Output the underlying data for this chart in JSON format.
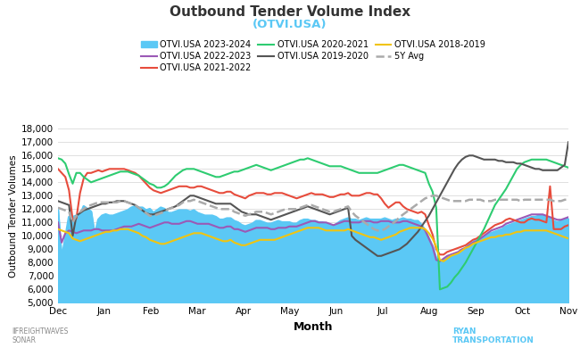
{
  "title": "Outbound Tender Volume Index",
  "subtitle": "(OTVI.USA)",
  "xlabel": "Month",
  "ylabel": "Outbound Tender Volumes",
  "ylim": [
    5000,
    18000
  ],
  "yticks": [
    5000,
    6000,
    7000,
    8000,
    9000,
    10000,
    11000,
    12000,
    13000,
    14000,
    15000,
    16000,
    17000,
    18000
  ],
  "months": [
    "Dec",
    "Jan",
    "Feb",
    "Mar",
    "Apr",
    "May",
    "Jun",
    "Jul",
    "Aug",
    "Sep",
    "Oct",
    "Nov"
  ],
  "bg_color": "#ffffff",
  "grid_color": "#e0e0e0",
  "series": {
    "2023-2024": {
      "label": "OTVI.USA 2023-2024",
      "color": "#5bc8f5",
      "fill": true,
      "lw": 2.0,
      "values": [
        11900,
        8200,
        9800,
        11400,
        11400,
        11500,
        11500,
        12200,
        12000,
        11800,
        10000,
        11200,
        11500,
        11600,
        11500,
        11500,
        11600,
        11700,
        11800,
        11900,
        12100,
        12200,
        12100,
        12100,
        11900,
        12000,
        11700,
        11900,
        12100,
        12000,
        11700,
        11700,
        11800,
        11900,
        11900,
        11900,
        11800,
        11900,
        11700,
        11600,
        11500,
        11500,
        11500,
        11400,
        11200,
        11200,
        11300,
        11300,
        11100,
        11000,
        10800,
        10700,
        10800,
        10900,
        11100,
        11100,
        11000,
        10900,
        10900,
        11000,
        11100,
        11000,
        11000,
        11000,
        10900,
        10900,
        11100,
        11200,
        11200,
        11100,
        11100,
        11000,
        11000,
        10900,
        10800,
        10700,
        10900,
        11100,
        11200,
        11300,
        11200,
        11200,
        11100,
        11200,
        11300,
        11200,
        11200,
        11200,
        11200,
        11300,
        11200,
        11100,
        11200,
        11200,
        11300,
        11200,
        11200,
        11100,
        11100,
        10800,
        10400,
        9800,
        9200,
        8300,
        8100,
        8200,
        8400,
        8500,
        8600,
        8700,
        8900,
        9100,
        9300,
        9500,
        9700,
        9800,
        9900,
        10100,
        10200,
        10300,
        10400,
        10500,
        10700,
        10800,
        10900,
        11000,
        11100,
        11200,
        11300,
        11400,
        11400,
        11500,
        11500,
        11400,
        11300,
        11100,
        11000,
        11100,
        11200,
        11300
      ]
    },
    "2022-2023": {
      "label": "OTVI.USA 2022-2023",
      "color": "#9b59b6",
      "fill": false,
      "lw": 1.5,
      "values": [
        11000,
        9500,
        10200,
        10400,
        10300,
        10200,
        10300,
        10400,
        10400,
        10400,
        10500,
        10500,
        10400,
        10400,
        10400,
        10400,
        10500,
        10600,
        10700,
        10700,
        10700,
        10800,
        10900,
        10800,
        10700,
        10600,
        10700,
        10800,
        10900,
        11000,
        11000,
        10900,
        10900,
        10900,
        11000,
        11100,
        11100,
        11000,
        10900,
        10900,
        10900,
        10900,
        10800,
        10700,
        10600,
        10600,
        10700,
        10700,
        10500,
        10500,
        10400,
        10300,
        10400,
        10500,
        10600,
        10600,
        10600,
        10600,
        10500,
        10500,
        10600,
        10600,
        10600,
        10700,
        10700,
        10700,
        10800,
        10900,
        11000,
        11100,
        11100,
        11000,
        11000,
        11000,
        10900,
        10800,
        10900,
        11000,
        11100,
        11100,
        11000,
        11000,
        11000,
        11100,
        11100,
        11100,
        11000,
        11000,
        11100,
        11100,
        11100,
        11000,
        11000,
        11000,
        11100,
        11100,
        11000,
        10900,
        10800,
        10700,
        10400,
        9800,
        9200,
        8200,
        8100,
        8300,
        8500,
        8600,
        8700,
        8800,
        9000,
        9100,
        9300,
        9500,
        9600,
        9800,
        10000,
        10200,
        10400,
        10500,
        10600,
        10700,
        10900,
        11000,
        11100,
        11200,
        11300,
        11400,
        11500,
        11600,
        11600,
        11600,
        11600,
        11500,
        11400,
        11300,
        11200,
        11200,
        11300,
        11400
      ]
    },
    "2021-2022": {
      "label": "OTVI.USA 2021-2022",
      "color": "#e74c3c",
      "fill": false,
      "lw": 1.5,
      "values": [
        15000,
        14700,
        14400,
        13400,
        11200,
        11300,
        13200,
        14300,
        14700,
        14700,
        14800,
        14900,
        14800,
        14900,
        15000,
        15000,
        15000,
        15000,
        15000,
        14900,
        14800,
        14700,
        14500,
        14200,
        13900,
        13600,
        13400,
        13300,
        13200,
        13300,
        13400,
        13500,
        13600,
        13700,
        13700,
        13700,
        13600,
        13600,
        13700,
        13700,
        13600,
        13500,
        13400,
        13300,
        13200,
        13200,
        13300,
        13300,
        13100,
        13000,
        12900,
        12800,
        13000,
        13100,
        13200,
        13200,
        13200,
        13100,
        13100,
        13200,
        13200,
        13200,
        13100,
        13000,
        12900,
        12800,
        12900,
        13000,
        13100,
        13200,
        13100,
        13100,
        13100,
        13000,
        12900,
        12900,
        13000,
        13100,
        13100,
        13200,
        13000,
        13000,
        13000,
        13100,
        13200,
        13200,
        13100,
        13100,
        12800,
        12400,
        12100,
        12300,
        12500,
        12500,
        12200,
        12000,
        11900,
        11800,
        11700,
        11800,
        11600,
        10800,
        10100,
        9000,
        8600,
        8600,
        8800,
        8900,
        9000,
        9100,
        9200,
        9300,
        9500,
        9700,
        9800,
        10000,
        10200,
        10400,
        10600,
        10800,
        10900,
        11000,
        11200,
        11300,
        11200,
        11100,
        11000,
        11000,
        11200,
        11300,
        11200,
        11200,
        11100,
        11000,
        13700,
        10500,
        10500,
        10500,
        10700,
        10800
      ]
    },
    "2020-2021": {
      "label": "OTVI.USA 2020-2021",
      "color": "#2ecc71",
      "fill": false,
      "lw": 1.5,
      "values": [
        15800,
        15700,
        15400,
        14600,
        13900,
        14700,
        14700,
        14400,
        14200,
        14000,
        14100,
        14200,
        14300,
        14400,
        14500,
        14600,
        14700,
        14800,
        14800,
        14800,
        14700,
        14600,
        14500,
        14300,
        14100,
        13900,
        13800,
        13600,
        13600,
        13700,
        13900,
        14200,
        14500,
        14700,
        14900,
        15000,
        15000,
        15000,
        14900,
        14800,
        14700,
        14600,
        14500,
        14400,
        14400,
        14500,
        14600,
        14700,
        14800,
        14800,
        14900,
        15000,
        15100,
        15200,
        15300,
        15200,
        15100,
        15000,
        14900,
        15000,
        15100,
        15200,
        15300,
        15400,
        15500,
        15600,
        15700,
        15700,
        15800,
        15700,
        15600,
        15500,
        15400,
        15300,
        15200,
        15200,
        15200,
        15200,
        15100,
        15000,
        14900,
        14800,
        14700,
        14700,
        14700,
        14700,
        14700,
        14700,
        14800,
        14900,
        15000,
        15100,
        15200,
        15300,
        15300,
        15200,
        15100,
        15000,
        14900,
        14800,
        14700,
        13900,
        13300,
        12100,
        6000,
        6100,
        6200,
        6500,
        6900,
        7200,
        7600,
        8000,
        8500,
        9000,
        9500,
        10000,
        10500,
        11100,
        11700,
        12300,
        12700,
        13100,
        13500,
        14000,
        14500,
        15000,
        15300,
        15500,
        15600,
        15700,
        15700,
        15700,
        15700,
        15700,
        15600,
        15500,
        15400,
        15300,
        15200,
        15100
      ]
    },
    "2019-2020": {
      "label": "OTVI.USA 2019-2020",
      "color": "#555555",
      "fill": false,
      "lw": 1.5,
      "values": [
        12600,
        12500,
        12400,
        12300,
        10000,
        11500,
        11700,
        11900,
        12000,
        12100,
        12200,
        12300,
        12400,
        12400,
        12500,
        12500,
        12600,
        12600,
        12600,
        12500,
        12400,
        12300,
        12100,
        11900,
        11700,
        11600,
        11600,
        11700,
        11800,
        11900,
        12000,
        12100,
        12200,
        12400,
        12600,
        12800,
        13000,
        13000,
        12900,
        12800,
        12700,
        12600,
        12500,
        12400,
        12400,
        12400,
        12400,
        12400,
        12200,
        12000,
        11800,
        11700,
        11600,
        11600,
        11600,
        11500,
        11400,
        11300,
        11200,
        11300,
        11400,
        11500,
        11600,
        11700,
        11800,
        11900,
        12000,
        12100,
        12200,
        12100,
        12000,
        11900,
        11800,
        11700,
        11600,
        11700,
        11800,
        11900,
        12000,
        12100,
        10000,
        9700,
        9500,
        9300,
        9100,
        8900,
        8700,
        8500,
        8500,
        8600,
        8700,
        8800,
        8900,
        9000,
        9200,
        9400,
        9700,
        10000,
        10300,
        10700,
        11100,
        11500,
        12000,
        12500,
        13000,
        13500,
        14000,
        14500,
        15000,
        15400,
        15700,
        15900,
        16000,
        16000,
        15900,
        15800,
        15700,
        15700,
        15700,
        15700,
        15600,
        15600,
        15500,
        15500,
        15500,
        15400,
        15400,
        15300,
        15200,
        15100,
        15000,
        15000,
        14900,
        14900,
        14900,
        14900,
        14900,
        15100,
        15300,
        17000
      ]
    },
    "2018-2019": {
      "label": "OTVI.USA 2018-2019",
      "color": "#f1c40f",
      "fill": false,
      "lw": 1.5,
      "values": [
        10500,
        10400,
        10300,
        10200,
        9800,
        9700,
        9600,
        9700,
        9800,
        9900,
        10000,
        10100,
        10200,
        10300,
        10300,
        10400,
        10400,
        10500,
        10500,
        10500,
        10400,
        10300,
        10200,
        10000,
        9900,
        9700,
        9600,
        9500,
        9400,
        9400,
        9500,
        9600,
        9700,
        9800,
        9900,
        10000,
        10100,
        10200,
        10200,
        10200,
        10100,
        10000,
        9900,
        9800,
        9700,
        9600,
        9600,
        9700,
        9500,
        9400,
        9300,
        9300,
        9400,
        9500,
        9600,
        9700,
        9700,
        9700,
        9700,
        9700,
        9800,
        9900,
        10000,
        10100,
        10200,
        10300,
        10400,
        10500,
        10600,
        10600,
        10600,
        10600,
        10500,
        10400,
        10400,
        10400,
        10400,
        10400,
        10400,
        10500,
        10400,
        10300,
        10200,
        10100,
        10000,
        9900,
        9900,
        9800,
        9700,
        9800,
        9900,
        10000,
        10100,
        10300,
        10400,
        10500,
        10600,
        10600,
        10600,
        10600,
        10500,
        10200,
        9800,
        9200,
        8200,
        8100,
        8300,
        8500,
        8600,
        8700,
        8900,
        9100,
        9200,
        9400,
        9500,
        9600,
        9700,
        9800,
        9900,
        9900,
        10000,
        10000,
        10100,
        10100,
        10200,
        10300,
        10300,
        10400,
        10400,
        10400,
        10400,
        10400,
        10400,
        10400,
        10300,
        10200,
        10100,
        10000,
        9900,
        9800
      ]
    },
    "5Y_Avg": {
      "label": "5Y Avg",
      "color": "#aaaaaa",
      "fill": false,
      "lw": 1.8,
      "linestyle": "--",
      "values": [
        12100,
        12000,
        11900,
        11800,
        11000,
        11500,
        11800,
        12000,
        12200,
        12300,
        12400,
        12500,
        12500,
        12500,
        12500,
        12500,
        12500,
        12600,
        12600,
        12500,
        12400,
        12300,
        12100,
        11900,
        11700,
        11500,
        11500,
        11600,
        11700,
        11800,
        12000,
        12100,
        12200,
        12300,
        12500,
        12600,
        12600,
        12700,
        12600,
        12500,
        12400,
        12300,
        12200,
        12100,
        12000,
        12000,
        12000,
        12000,
        11800,
        11700,
        11600,
        11500,
        11600,
        11700,
        11800,
        11800,
        11800,
        11700,
        11600,
        11700,
        11800,
        11900,
        12000,
        12000,
        12000,
        12000,
        12100,
        12200,
        12300,
        12300,
        12200,
        12100,
        12000,
        11900,
        11800,
        11800,
        11900,
        12000,
        12100,
        12200,
        11800,
        11500,
        11300,
        11100,
        10900,
        10700,
        10500,
        10400,
        10400,
        10500,
        10700,
        10900,
        11100,
        11400,
        11600,
        11800,
        12000,
        12200,
        12400,
        12600,
        12800,
        12900,
        13000,
        13000,
        12900,
        12800,
        12700,
        12600,
        12600,
        12600,
        12600,
        12600,
        12700,
        12700,
        12700,
        12700,
        12600,
        12600,
        12600,
        12700,
        12700,
        12700,
        12700,
        12700,
        12700,
        12700,
        12600,
        12700,
        12700,
        12700,
        12700,
        12700,
        12700,
        12700,
        12700,
        12600,
        12600,
        12600,
        12700,
        12700
      ]
    }
  },
  "legend_order": [
    "2023-2024",
    "2022-2023",
    "2021-2022",
    "2020-2021",
    "2019-2020",
    "2018-2019",
    "5Y_Avg"
  ],
  "freightwaves_color": "#888888",
  "ryan_color": "#5bc8f5",
  "title_color": "#333333",
  "subtitle_color": "#5bc8f5"
}
